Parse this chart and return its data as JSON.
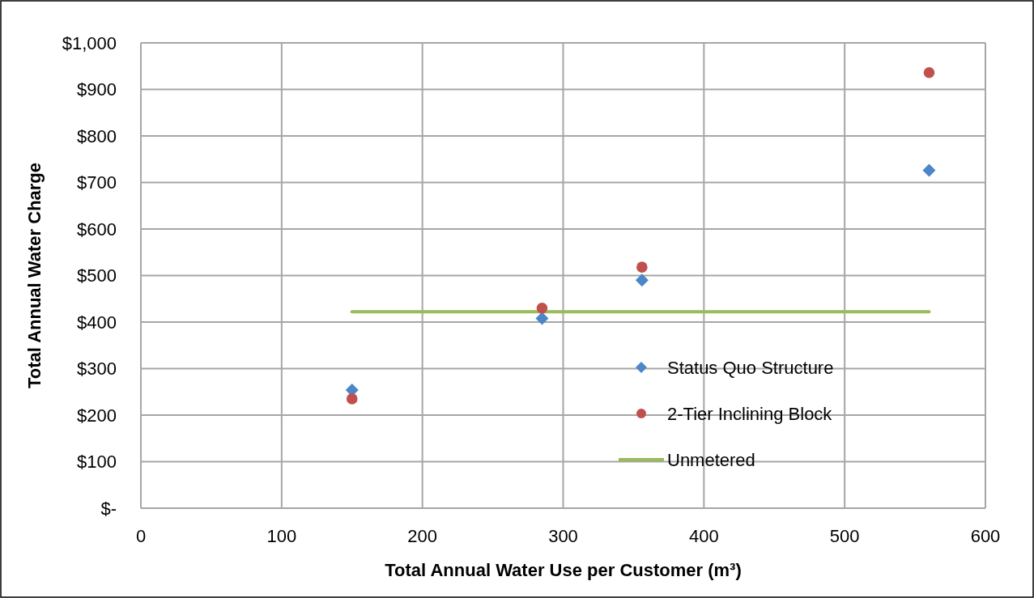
{
  "chart_data": {
    "type": "scatter",
    "xlabel": "Total Annual Water Use per Customer (m³)",
    "ylabel": "Total Annual Water Charge",
    "xlim": [
      0,
      600
    ],
    "xticks": [
      0,
      100,
      200,
      300,
      400,
      500,
      600
    ],
    "ylim": [
      0,
      1000
    ],
    "yticks": [
      {
        "value": 0,
        "label": "$-"
      },
      {
        "value": 100,
        "label": "$100"
      },
      {
        "value": 200,
        "label": "$200"
      },
      {
        "value": 300,
        "label": "$300"
      },
      {
        "value": 400,
        "label": "$400"
      },
      {
        "value": 500,
        "label": "$500"
      },
      {
        "value": 600,
        "label": "$600"
      },
      {
        "value": 700,
        "label": "$700"
      },
      {
        "value": 800,
        "label": "$800"
      },
      {
        "value": 900,
        "label": "$900"
      },
      {
        "value": 1000,
        "label": "$1,000"
      }
    ],
    "grid": true,
    "legend": "bottom right",
    "series": [
      {
        "name": "Status Quo Structure",
        "marker": "diamond",
        "color": "#4a86c8",
        "x": [
          150,
          285,
          356,
          560
        ],
        "values": [
          254,
          408,
          490,
          726
        ]
      },
      {
        "name": "2-Tier Inclining Block",
        "marker": "circle",
        "color": "#c0504d",
        "x": [
          150,
          285,
          356,
          560
        ],
        "values": [
          235,
          430,
          518,
          936
        ]
      },
      {
        "name": "Unmetered",
        "type": "line",
        "marker": "none",
        "color": "#9bbb59",
        "x": [
          150,
          560
        ],
        "values": [
          422,
          422
        ]
      }
    ]
  }
}
